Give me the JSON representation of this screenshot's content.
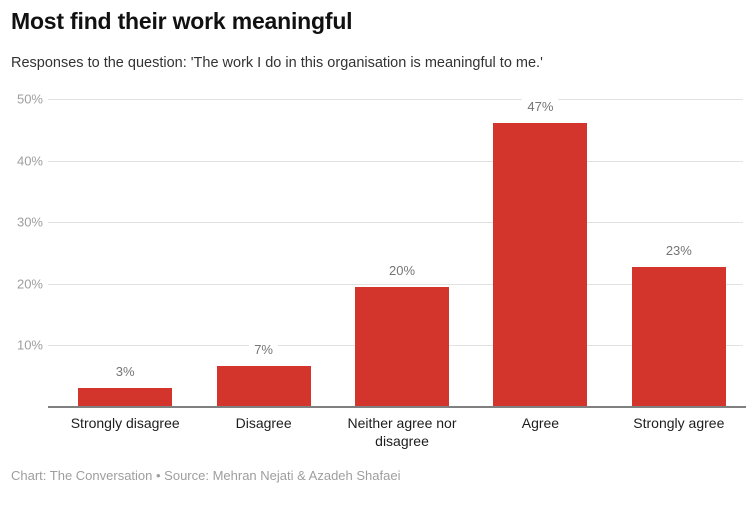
{
  "header": {
    "title": "Most find their work meaningful",
    "subtitle": "Responses to the question: 'The work I do in this organisation is meaningful to me.'"
  },
  "footer": {
    "credit": "Chart: The Conversation • Source: Mehran Nejati & Azadeh Shafaei"
  },
  "colors": {
    "bar": "#d3342b",
    "grid": "#e2e2e2",
    "axis": "#808080",
    "tick_label": "#9e9e9e",
    "data_label": "#757575",
    "x_label": "#1d1d1d",
    "footer": "#9e9e9e",
    "background": "#ffffff"
  },
  "chart_data": {
    "type": "bar",
    "title": "Most find their work meaningful",
    "subtitle": "Responses to the question: 'The work I do in this organisation is meaningful to me.'",
    "categories": [
      "Strongly disagree",
      "Disagree",
      "Neither agree nor disagree",
      "Agree",
      "Strongly agree"
    ],
    "values": [
      3,
      7,
      20,
      47,
      23
    ],
    "value_labels": [
      "3%",
      "7%",
      "20%",
      "47%",
      "23%"
    ],
    "bar_heights_pct": [
      3.1,
      6.7,
      19.5,
      47.1,
      22.7
    ],
    "xlabel": "",
    "ylabel": "",
    "ylim": [
      0,
      50
    ],
    "yticks": [
      10,
      20,
      30,
      40,
      50
    ],
    "ytick_labels": [
      "10%",
      "20%",
      "30%",
      "40%",
      "50%"
    ],
    "grid": true,
    "legend": false,
    "bar_color": "#d3342b"
  }
}
